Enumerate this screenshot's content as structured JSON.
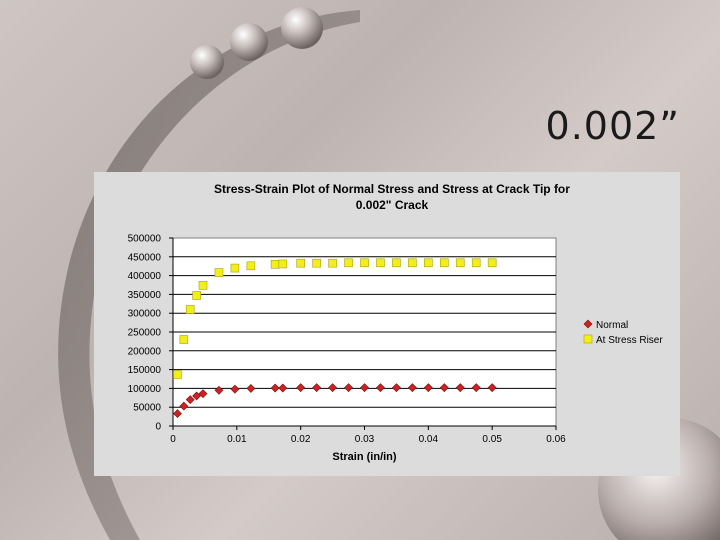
{
  "slide": {
    "title": "0.002”"
  },
  "chart_data": {
    "type": "scatter",
    "title": "Stress-Strain Plot of Normal Stress and Stress at Crack Tip for 0.002\" Crack",
    "title_lines": [
      "Stress-Strain Plot of Normal Stress and Stress at Crack Tip for",
      "0.002\" Crack"
    ],
    "xlabel": "Strain (in/in)",
    "ylabel": "",
    "xlim": [
      0,
      0.06
    ],
    "ylim": [
      0,
      500000
    ],
    "x_ticks": [
      0,
      0.01,
      0.02,
      0.03,
      0.04,
      0.05,
      0.06
    ],
    "x_tick_labels": [
      "0",
      "0.01",
      "0.02",
      "0.03",
      "0.04",
      "0.05",
      "0.06"
    ],
    "y_ticks": [
      0,
      50000,
      100000,
      150000,
      200000,
      250000,
      300000,
      350000,
      400000,
      450000,
      500000
    ],
    "y_tick_labels": [
      "0",
      "50000",
      "100000",
      "150000",
      "200000",
      "250000",
      "300000",
      "350000",
      "400000",
      "450000",
      "500000"
    ],
    "grid": "horizontal",
    "legend_position": "right",
    "series": [
      {
        "name": "Normal",
        "color": "#cc2222",
        "marker": "diamond",
        "points": [
          [
            0.0007,
            33000
          ],
          [
            0.0017,
            53000
          ],
          [
            0.0027,
            70000
          ],
          [
            0.0037,
            80000
          ],
          [
            0.0047,
            86000
          ],
          [
            0.0072,
            95000
          ],
          [
            0.0097,
            98000
          ],
          [
            0.0122,
            100000
          ],
          [
            0.016,
            101000
          ],
          [
            0.0172,
            101000
          ],
          [
            0.02,
            102000
          ],
          [
            0.0225,
            102000
          ],
          [
            0.025,
            102000
          ],
          [
            0.0275,
            102000
          ],
          [
            0.03,
            102000
          ],
          [
            0.0325,
            102000
          ],
          [
            0.035,
            102000
          ],
          [
            0.0375,
            102000
          ],
          [
            0.04,
            102000
          ],
          [
            0.0425,
            102000
          ],
          [
            0.045,
            102000
          ],
          [
            0.0475,
            102000
          ],
          [
            0.05,
            102000
          ]
        ]
      },
      {
        "name": "At Stress Riser",
        "color": "#f2ee1a",
        "marker": "square",
        "points": [
          [
            0.0007,
            137000
          ],
          [
            0.0017,
            230000
          ],
          [
            0.0027,
            310000
          ],
          [
            0.0037,
            347000
          ],
          [
            0.0047,
            374000
          ],
          [
            0.0072,
            408000
          ],
          [
            0.0097,
            420000
          ],
          [
            0.0122,
            426000
          ],
          [
            0.016,
            430000
          ],
          [
            0.0172,
            431000
          ],
          [
            0.02,
            433000
          ],
          [
            0.0225,
            433000
          ],
          [
            0.025,
            433000
          ],
          [
            0.0275,
            434000
          ],
          [
            0.03,
            434000
          ],
          [
            0.0325,
            434000
          ],
          [
            0.035,
            434000
          ],
          [
            0.0375,
            434000
          ],
          [
            0.04,
            434000
          ],
          [
            0.0425,
            434000
          ],
          [
            0.045,
            434000
          ],
          [
            0.0475,
            434000
          ],
          [
            0.05,
            434000
          ]
        ]
      }
    ]
  }
}
